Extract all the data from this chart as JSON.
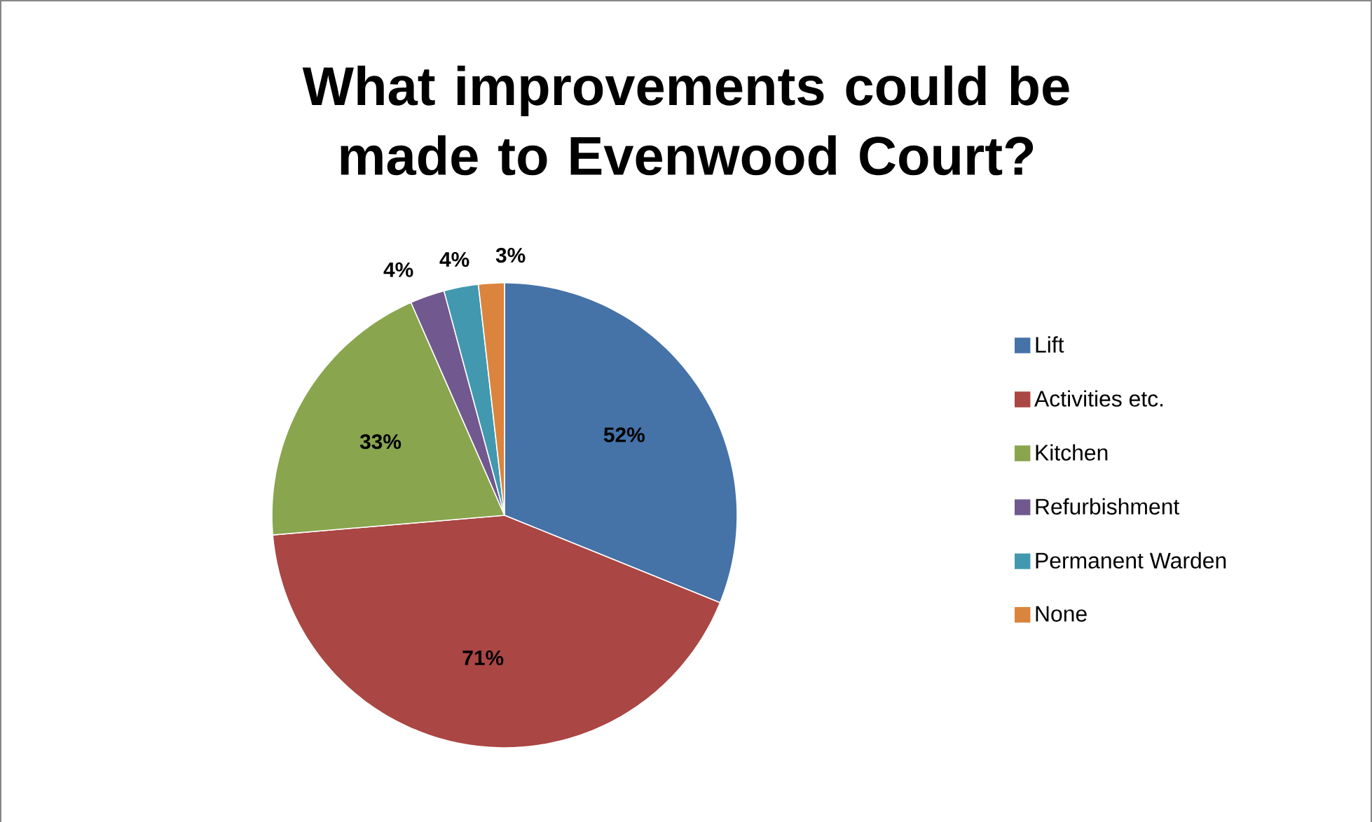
{
  "chart_data": {
    "type": "pie",
    "title": "What improvements could be made to Evenwood Court?",
    "categories": [
      "Lift",
      "Activities etc.",
      "Kitchen",
      "Refurbishment",
      "Permanent Warden",
      "None"
    ],
    "values": [
      52,
      71,
      33,
      4,
      4,
      3
    ],
    "value_labels": [
      "52%",
      "71%",
      "33%",
      "4%",
      "4%",
      "3%"
    ],
    "colors": [
      "#4572a7",
      "#aa4643",
      "#89a54e",
      "#71588f",
      "#4198af",
      "#db843d"
    ],
    "legend": "right"
  }
}
